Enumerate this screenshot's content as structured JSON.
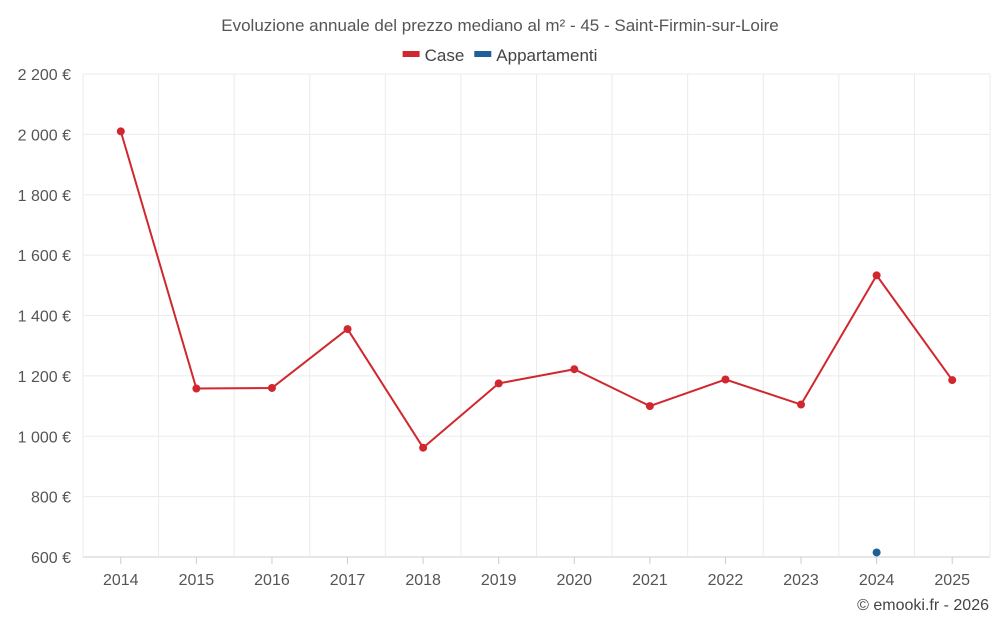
{
  "chart_data": {
    "type": "line",
    "title": "Evoluzione annuale del prezzo mediano al m² - 45 - Saint-Firmin-sur-Loire",
    "categories": [
      "2014",
      "2015",
      "2016",
      "2017",
      "2018",
      "2019",
      "2020",
      "2021",
      "2022",
      "2023",
      "2024",
      "2025"
    ],
    "series": [
      {
        "name": "Case",
        "color": "#d0282e",
        "values": [
          2010,
          1158,
          1160,
          1355,
          962,
          1175,
          1222,
          1100,
          1188,
          1105,
          1533,
          1186
        ]
      },
      {
        "name": "Appartamenti",
        "color": "#1f5f99",
        "values": [
          null,
          null,
          null,
          null,
          null,
          null,
          null,
          null,
          null,
          null,
          615,
          null
        ]
      }
    ],
    "y_ticks": [
      600,
      800,
      1000,
      1200,
      1400,
      1600,
      1800,
      2000,
      2200
    ],
    "y_tick_labels": [
      "600 €",
      "800 €",
      "1 000 €",
      "1 200 €",
      "1 400 €",
      "1 600 €",
      "1 800 €",
      "2 000 €",
      "2 200 €"
    ],
    "ylim": [
      600,
      2200
    ],
    "xlabel": "",
    "ylabel": "",
    "grid": true,
    "legend_position": "top-center"
  },
  "footer": "© emooki.fr - 2026"
}
